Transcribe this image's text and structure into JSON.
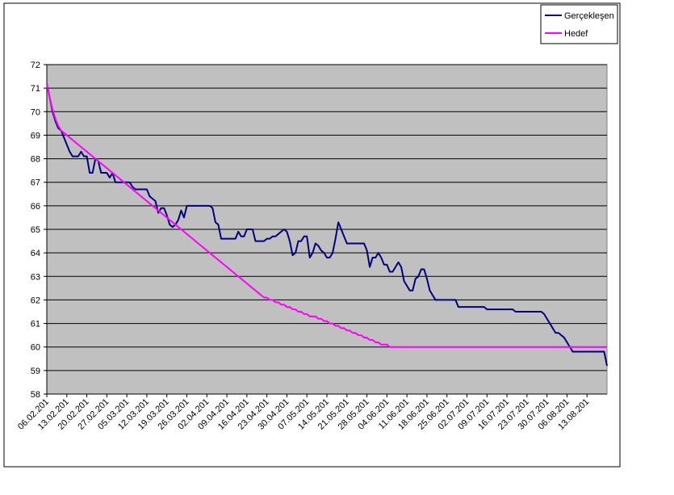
{
  "chart_data": {
    "type": "line",
    "categories": [
      "06.02.201",
      null,
      null,
      null,
      null,
      null,
      null,
      "13.02.201",
      null,
      null,
      null,
      null,
      null,
      null,
      "20.02.201",
      null,
      null,
      null,
      null,
      null,
      null,
      "27.02.201",
      null,
      null,
      null,
      null,
      null,
      null,
      "05.03.201",
      null,
      null,
      null,
      null,
      null,
      null,
      "12.03.201",
      null,
      null,
      null,
      null,
      null,
      null,
      "19.03.201",
      null,
      null,
      null,
      null,
      null,
      null,
      "26.03.201",
      null,
      null,
      null,
      null,
      null,
      null,
      "02.04.201",
      null,
      null,
      null,
      null,
      null,
      null,
      "09.04.201",
      null,
      null,
      null,
      null,
      null,
      null,
      "16.04.201",
      null,
      null,
      null,
      null,
      null,
      null,
      "23.04.201",
      null,
      null,
      null,
      null,
      null,
      null,
      "30.04.201",
      null,
      null,
      null,
      null,
      null,
      null,
      "07.05.201",
      null,
      null,
      null,
      null,
      null,
      null,
      "14.05.201",
      null,
      null,
      null,
      null,
      null,
      null,
      "21.05.201",
      null,
      null,
      null,
      null,
      null,
      null,
      "28.05.201",
      null,
      null,
      null,
      null,
      null,
      null,
      "04.06.201",
      null,
      null,
      null,
      null,
      null,
      null,
      "11.06.201",
      null,
      null,
      null,
      null,
      null,
      null,
      "18.06.201",
      null,
      null,
      null,
      null,
      null,
      null,
      "25.06.201",
      null,
      null,
      null,
      null,
      null,
      null,
      "02.07.201",
      null,
      null,
      null,
      null,
      null,
      null,
      "09.07.201",
      null,
      null,
      null,
      null,
      null,
      null,
      "16.07.201",
      null,
      null,
      null,
      null,
      null,
      null,
      "23.07.201",
      null,
      null,
      null,
      null,
      null,
      null,
      "30.07.201",
      null,
      null,
      null,
      null,
      null,
      null,
      "06.08.201",
      null,
      null,
      null,
      null,
      null,
      null,
      "13.08.201",
      null,
      null,
      null,
      null,
      null,
      null,
      null
    ],
    "series": [
      {
        "name": "Gerçekleşen",
        "color": "#000080",
        "values": [
          71.2,
          70.6,
          70.0,
          69.6,
          69.3,
          69.2,
          68.9,
          68.6,
          68.3,
          68.1,
          68.1,
          68.1,
          68.3,
          68.1,
          68.1,
          67.4,
          67.4,
          68.0,
          67.9,
          67.4,
          67.4,
          67.4,
          67.2,
          67.4,
          67.0,
          67.0,
          67.0,
          67.0,
          67.0,
          67.0,
          66.8,
          66.7,
          66.7,
          66.7,
          66.7,
          66.7,
          66.4,
          66.3,
          66.2,
          65.7,
          65.9,
          65.9,
          65.6,
          65.2,
          65.1,
          65.2,
          65.4,
          65.8,
          65.5,
          66.0,
          66.0,
          66.0,
          66.0,
          66.0,
          66.0,
          66.0,
          66.0,
          66.0,
          65.9,
          65.3,
          65.2,
          64.6,
          64.6,
          64.6,
          64.6,
          64.6,
          64.6,
          64.9,
          64.7,
          64.7,
          65.0,
          65.0,
          65.0,
          64.5,
          64.5,
          64.5,
          64.5,
          64.6,
          64.6,
          64.7,
          64.7,
          64.8,
          64.9,
          65.0,
          64.9,
          64.5,
          63.9,
          64.0,
          64.5,
          64.5,
          64.7,
          64.7,
          63.8,
          64.0,
          64.4,
          64.3,
          64.1,
          64.0,
          63.8,
          63.8,
          64.0,
          64.6,
          65.3,
          65.0,
          64.7,
          64.4,
          64.4,
          64.4,
          64.4,
          64.4,
          64.4,
          64.4,
          64.1,
          63.4,
          63.8,
          63.8,
          64.0,
          63.8,
          63.5,
          63.5,
          63.2,
          63.2,
          63.4,
          63.6,
          63.4,
          62.8,
          62.6,
          62.4,
          62.4,
          62.9,
          63.0,
          63.3,
          63.3,
          62.9,
          62.4,
          62.2,
          62.0,
          62.0,
          62.0,
          62.0,
          62.0,
          62.0,
          62.0,
          62.0,
          61.7,
          61.7,
          61.7,
          61.7,
          61.7,
          61.7,
          61.7,
          61.7,
          61.7,
          61.7,
          61.6,
          61.6,
          61.6,
          61.6,
          61.6,
          61.6,
          61.6,
          61.6,
          61.6,
          61.6,
          61.5,
          61.5,
          61.5,
          61.5,
          61.5,
          61.5,
          61.5,
          61.5,
          61.5,
          61.5,
          61.4,
          61.2,
          61.0,
          60.8,
          60.6,
          60.6,
          60.5,
          60.4,
          60.2,
          60.0,
          59.8,
          59.8,
          59.8,
          59.8,
          59.8,
          59.8,
          59.8,
          59.8,
          59.8,
          59.8,
          59.8,
          59.8,
          59.2
        ]
      },
      {
        "name": "Hedef",
        "color": "#ff00ff",
        "values": [
          71.2,
          70.6,
          70.1,
          69.7,
          69.4,
          69.2,
          69.1,
          69.0,
          68.9,
          68.8,
          68.7,
          68.6,
          68.5,
          68.4,
          68.3,
          68.2,
          68.1,
          68.0,
          67.9,
          67.8,
          67.7,
          67.6,
          67.5,
          67.4,
          67.3,
          67.2,
          67.1,
          67.0,
          66.9,
          66.8,
          66.7,
          66.6,
          66.5,
          66.4,
          66.3,
          66.2,
          66.1,
          66.0,
          65.9,
          65.8,
          65.7,
          65.6,
          65.5,
          65.4,
          65.3,
          65.2,
          65.1,
          65.0,
          64.9,
          64.8,
          64.7,
          64.6,
          64.5,
          64.4,
          64.3,
          64.2,
          64.1,
          64.0,
          63.9,
          63.8,
          63.7,
          63.6,
          63.5,
          63.4,
          63.3,
          63.2,
          63.1,
          63.0,
          62.9,
          62.8,
          62.7,
          62.6,
          62.5,
          62.4,
          62.3,
          62.2,
          62.1,
          62.1,
          62.0,
          62.0,
          61.9,
          61.9,
          61.8,
          61.8,
          61.7,
          61.7,
          61.6,
          61.6,
          61.5,
          61.5,
          61.4,
          61.4,
          61.3,
          61.3,
          61.3,
          61.2,
          61.2,
          61.1,
          61.1,
          61.0,
          61.0,
          60.9,
          60.9,
          60.8,
          60.8,
          60.7,
          60.7,
          60.6,
          60.6,
          60.5,
          60.5,
          60.4,
          60.4,
          60.3,
          60.3,
          60.2,
          60.2,
          60.1,
          60.1,
          60.1,
          60.0,
          60.0,
          60.0,
          60.0,
          60.0,
          60.0,
          60.0,
          60.0,
          60.0,
          60.0,
          60.0,
          60.0,
          60.0,
          60.0,
          60.0,
          60.0,
          60.0,
          60.0,
          60.0,
          60.0,
          60.0,
          60.0,
          60.0,
          60.0,
          60.0,
          60.0,
          60.0,
          60.0,
          60.0,
          60.0,
          60.0,
          60.0,
          60.0,
          60.0,
          60.0,
          60.0,
          60.0,
          60.0,
          60.0,
          60.0,
          60.0,
          60.0,
          60.0,
          60.0,
          60.0,
          60.0,
          60.0,
          60.0,
          60.0,
          60.0,
          60.0,
          60.0,
          60.0,
          60.0,
          60.0,
          60.0,
          60.0,
          60.0,
          60.0,
          60.0,
          60.0,
          60.0,
          60.0,
          60.0,
          60.0,
          60.0,
          60.0,
          60.0,
          60.0,
          60.0,
          60.0,
          60.0,
          60.0,
          60.0,
          60.0,
          60.0,
          60.0
        ]
      }
    ],
    "ylim": [
      58,
      72
    ],
    "yticks": [
      58,
      59,
      60,
      61,
      62,
      63,
      64,
      65,
      66,
      67,
      68,
      69,
      70,
      71,
      72
    ],
    "grid": true,
    "plot_background": "#c0c0c0",
    "legend": "top-right"
  }
}
